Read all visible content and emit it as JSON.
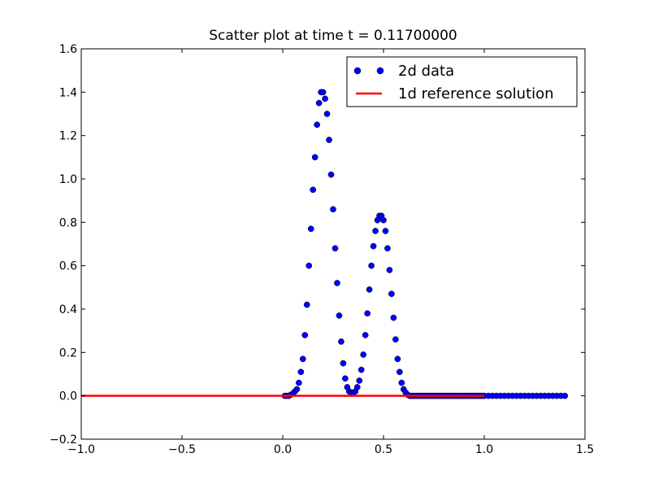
{
  "chart_data": {
    "type": "scatter",
    "title": "Scatter plot at time t =     0.11700000",
    "xlabel": "",
    "ylabel": "",
    "xlim": [
      -1.0,
      1.5
    ],
    "ylim": [
      -0.2,
      1.6
    ],
    "x_ticks": [
      -1.0,
      -0.5,
      0.0,
      0.5,
      1.0,
      1.5
    ],
    "x_tick_labels": [
      "−1.0",
      "−0.5",
      "0.0",
      "0.5",
      "1.0",
      "1.5"
    ],
    "y_ticks": [
      -0.2,
      0.0,
      0.2,
      0.4,
      0.6,
      0.8,
      1.0,
      1.2,
      1.4,
      1.6
    ],
    "y_tick_labels": [
      "−0.2",
      "0.0",
      "0.2",
      "0.4",
      "0.6",
      "0.8",
      "1.0",
      "1.2",
      "1.4",
      "1.6"
    ],
    "grid": false,
    "legend_position": "top-right",
    "series": [
      {
        "name": "2d data",
        "kind": "scatter",
        "color": "#0000ff",
        "edge_color": "#000000",
        "x": [
          0.01,
          0.02,
          0.03,
          0.04,
          0.05,
          0.06,
          0.07,
          0.08,
          0.09,
          0.1,
          0.11,
          0.12,
          0.13,
          0.14,
          0.15,
          0.16,
          0.17,
          0.18,
          0.19,
          0.2,
          0.21,
          0.22,
          0.23,
          0.24,
          0.25,
          0.26,
          0.27,
          0.28,
          0.29,
          0.3,
          0.31,
          0.32,
          0.33,
          0.34,
          0.35,
          0.36,
          0.37,
          0.38,
          0.39,
          0.4,
          0.41,
          0.42,
          0.43,
          0.44,
          0.45,
          0.46,
          0.47,
          0.48,
          0.49,
          0.5,
          0.51,
          0.52,
          0.53,
          0.54,
          0.55,
          0.56,
          0.57,
          0.58,
          0.59,
          0.6,
          0.61,
          0.62,
          0.63,
          0.64,
          0.65,
          0.66,
          0.67,
          0.68,
          0.69,
          0.7,
          0.71,
          0.72,
          0.73,
          0.74,
          0.75,
          0.76,
          0.77,
          0.78,
          0.79,
          0.8,
          0.81,
          0.82,
          0.83,
          0.84,
          0.85,
          0.86,
          0.87,
          0.88,
          0.89,
          0.9,
          0.91,
          0.92,
          0.93,
          0.94,
          0.95,
          0.96,
          0.97,
          0.98,
          0.99,
          1.0,
          1.02,
          1.04,
          1.06,
          1.08,
          1.1,
          1.12,
          1.14,
          1.16,
          1.18,
          1.2,
          1.22,
          1.24,
          1.26,
          1.28,
          1.3,
          1.32,
          1.34,
          1.36,
          1.38,
          1.4
        ],
        "y": [
          0.0,
          0.0,
          0.0,
          0.005,
          0.01,
          0.02,
          0.03,
          0.06,
          0.11,
          0.17,
          0.28,
          0.42,
          0.6,
          0.77,
          0.95,
          1.1,
          1.25,
          1.35,
          1.4,
          1.4,
          1.37,
          1.3,
          1.18,
          1.02,
          0.86,
          0.68,
          0.52,
          0.37,
          0.25,
          0.15,
          0.08,
          0.04,
          0.02,
          0.015,
          0.015,
          0.02,
          0.04,
          0.07,
          0.12,
          0.19,
          0.28,
          0.38,
          0.49,
          0.6,
          0.69,
          0.76,
          0.81,
          0.83,
          0.83,
          0.81,
          0.76,
          0.68,
          0.58,
          0.47,
          0.36,
          0.26,
          0.17,
          0.11,
          0.06,
          0.03,
          0.015,
          0.005,
          0.0,
          0.0,
          0.0,
          0.0,
          0.0,
          0.0,
          0.0,
          0.0,
          0.0,
          0.0,
          0.0,
          0.0,
          0.0,
          0.0,
          0.0,
          0.0,
          0.0,
          0.0,
          0.0,
          0.0,
          0.0,
          0.0,
          0.0,
          0.0,
          0.0,
          0.0,
          0.0,
          0.0,
          0.0,
          0.0,
          0.0,
          0.0,
          0.0,
          0.0,
          0.0,
          0.0,
          0.0,
          0.0,
          0.0,
          0.0,
          0.0,
          0.0,
          0.0,
          0.0,
          0.0,
          0.0,
          0.0,
          0.0,
          0.0,
          0.0,
          0.0,
          0.0,
          0.0,
          0.0,
          0.0,
          0.0,
          0.0,
          0.0
        ]
      },
      {
        "name": "1d reference solution",
        "kind": "line",
        "color": "#ff0000",
        "x": [
          -1.0,
          1.0
        ],
        "y": [
          0.0,
          0.0
        ]
      }
    ]
  }
}
